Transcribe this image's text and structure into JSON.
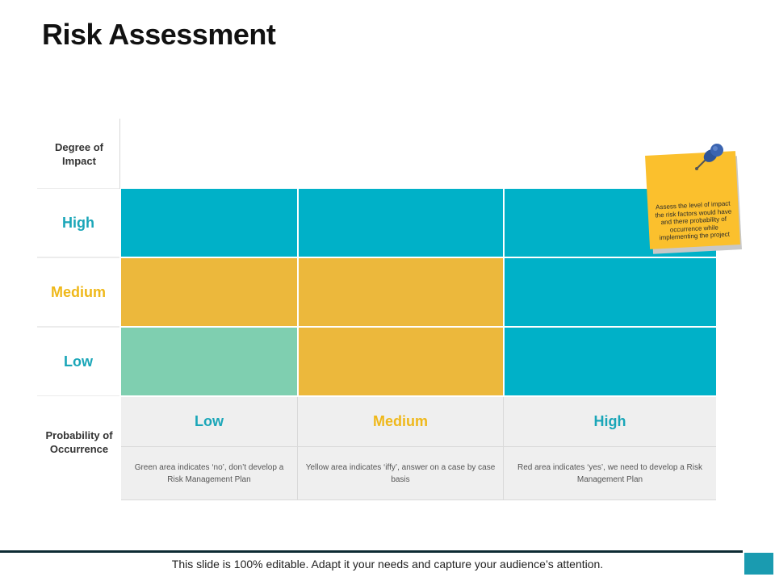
{
  "title": "Risk Assessment",
  "impact_label": "Degree of Impact",
  "probability_label": "Probability of Occurrence",
  "colors": {
    "teal": "#00b1c8",
    "yellow": "#ecb83c",
    "green": "#7fcfb0",
    "label_teal": "#1aa6b8",
    "label_yellow": "#efb81a",
    "note": "#fbc02d",
    "pin": "#2f5597"
  },
  "impact_levels": [
    {
      "label": "High",
      "color": "#1aa6b8"
    },
    {
      "label": "Medium",
      "color": "#efb81a"
    },
    {
      "label": "Low",
      "color": "#1aa6b8"
    }
  ],
  "matrix": [
    [
      "#00b1c8",
      "#00b1c8",
      "#00b1c8"
    ],
    [
      "#ecb83c",
      "#ecb83c",
      "#00b1c8"
    ],
    [
      "#7fcfb0",
      "#ecb83c",
      "#00b1c8"
    ]
  ],
  "probability_levels": [
    {
      "label": "Low",
      "color": "#1aa6b8",
      "description": "Green area indicates ‘no’, don’t develop a Risk Management Plan"
    },
    {
      "label": "Medium",
      "color": "#efb81a",
      "description": "Yellow area indicates ‘iffy’, answer on a case by case basis"
    },
    {
      "label": "High",
      "color": "#1aa6b8",
      "description": "Red area indicates ‘yes’, we need to develop a Risk Management Plan"
    }
  ],
  "sticky_note": "Assess the level of impact the risk factors would have and there probability of occurrence while implementing the project",
  "sticky_note_icon": "pushpin-icon",
  "footer": "This slide is 100% editable. Adapt it your needs and capture your audience’s attention."
}
